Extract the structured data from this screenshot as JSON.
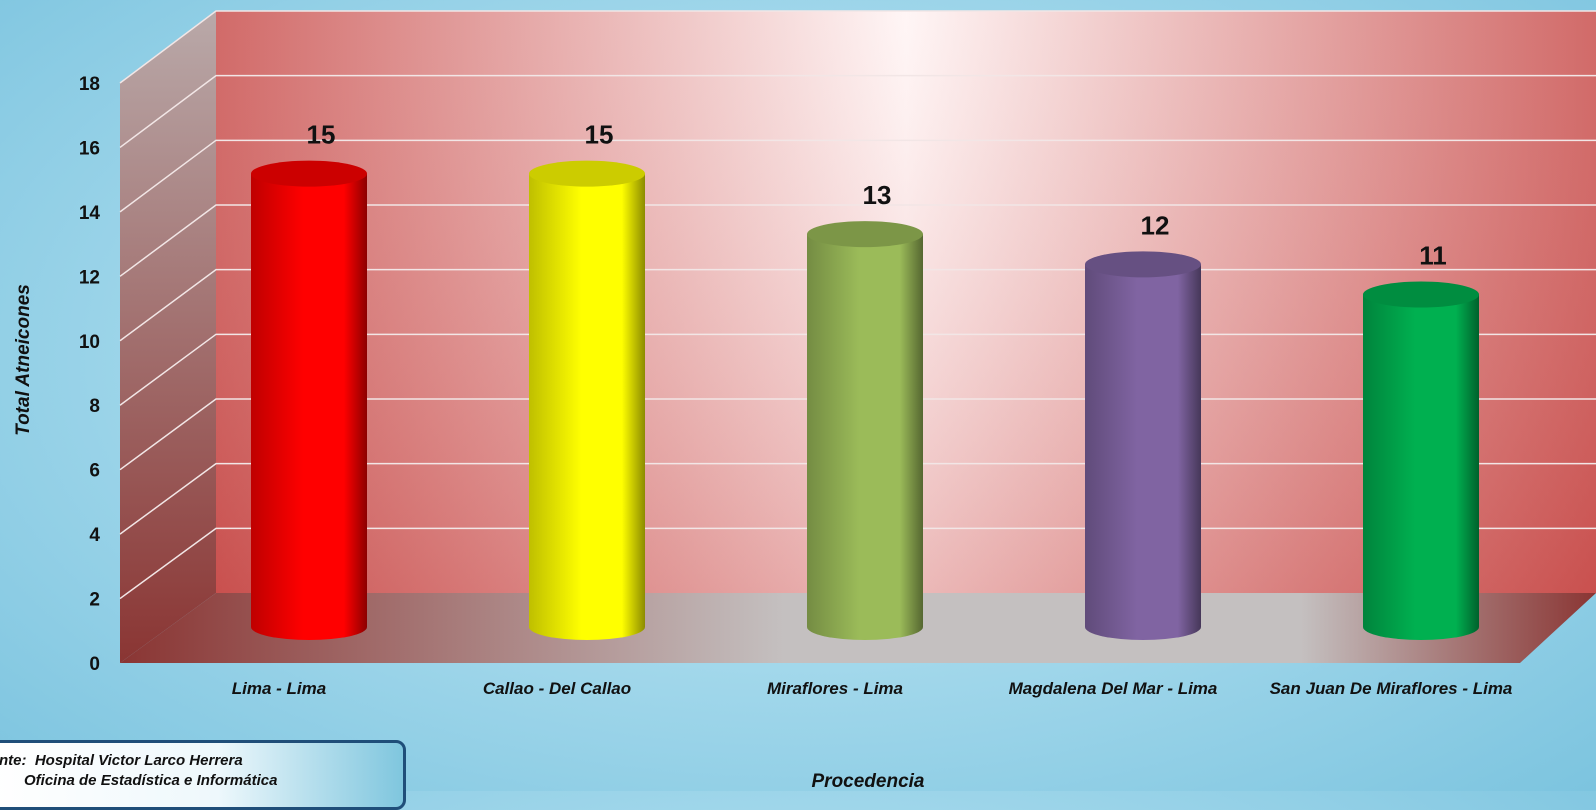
{
  "chart_data": {
    "type": "bar",
    "title": "",
    "xlabel": "Procedencia",
    "ylabel": "Total Atneicones",
    "ylim": [
      0,
      18
    ],
    "yticks": [
      0,
      2,
      4,
      6,
      8,
      10,
      12,
      14,
      16,
      18
    ],
    "categories": [
      "Lima - Lima",
      "Callao - Del Callao",
      "Miraflores - Lima",
      "Magdalena Del Mar - Lima",
      "San Juan De Miraflores - Lima"
    ],
    "values": [
      15,
      15,
      13,
      12,
      11
    ],
    "data_labels": [
      "15",
      "15",
      "13",
      "12",
      "11"
    ],
    "bar_colors": [
      "#ff0000",
      "#ffff00",
      "#9bbb59",
      "#8064a2",
      "#00b050"
    ],
    "bar_shape": "cylinder",
    "grid": true,
    "legend": "none"
  },
  "source": {
    "line1": "nte:  Hospital Victor Larco Herrera",
    "line2": "      Oficina de Estadística e Informática"
  }
}
